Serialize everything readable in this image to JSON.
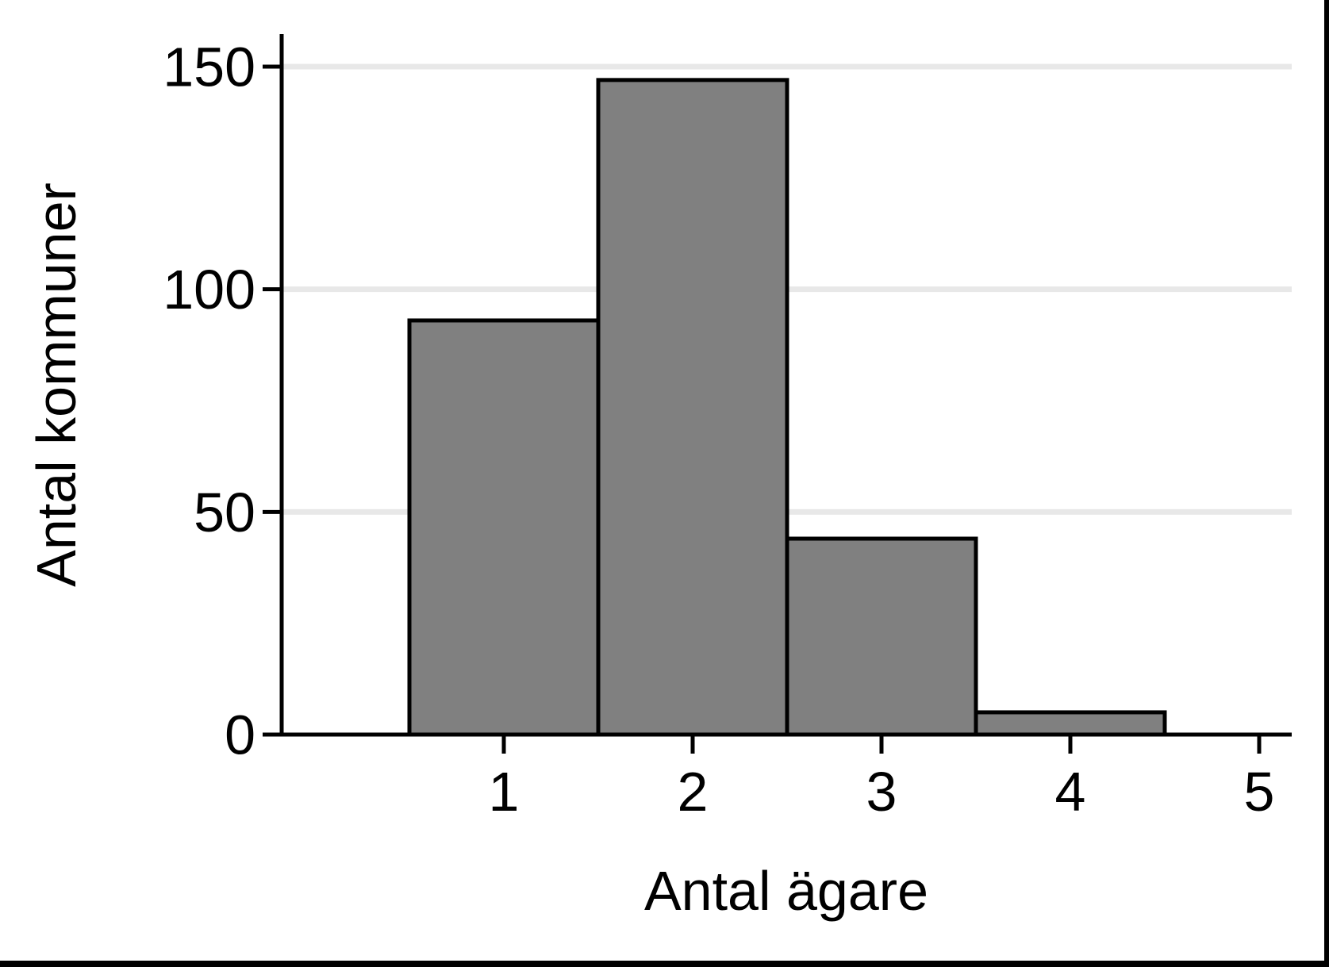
{
  "chart_data": {
    "type": "bar",
    "subtype": "histogram",
    "title": "",
    "xlabel": "Antal ägare",
    "ylabel": "Antal kommuner",
    "categories": [
      1,
      2,
      3,
      4
    ],
    "values": [
      93,
      147,
      44,
      5
    ],
    "bin_width": 1,
    "x_ticks": [
      1,
      2,
      3,
      4,
      5
    ],
    "y_ticks": [
      0,
      50,
      100,
      150
    ],
    "xlim": [
      -0.2,
      5.2
    ],
    "ylim": [
      0,
      157
    ],
    "grid": "horizontal-only",
    "legend": null,
    "colors": {
      "bar_fill": "#808080",
      "bar_border": "#000000",
      "gridline": "#e8e8e8",
      "axis": "#000000",
      "background": "#ffffff",
      "frame_border": "#000000"
    }
  }
}
